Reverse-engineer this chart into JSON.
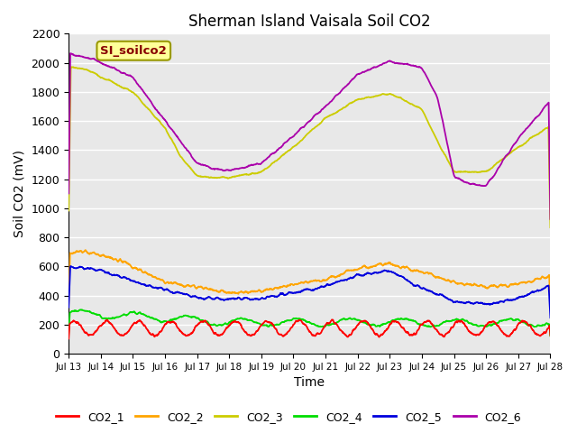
{
  "title": "Sherman Island Vaisala Soil CO2",
  "xlabel": "Time",
  "ylabel": "Soil CO2 (mV)",
  "annotation": "SI_soilco2",
  "ylim": [
    0,
    2200
  ],
  "yticks": [
    0,
    200,
    400,
    600,
    800,
    1000,
    1200,
    1400,
    1600,
    1800,
    2000,
    2200
  ],
  "xtick_labels": [
    "Jul 13",
    "Jul 14",
    "Jul 15",
    "Jul 16",
    "Jul 17",
    "Jul 18",
    "Jul 19",
    "Jul 20",
    "Jul 21",
    "Jul 22",
    "Jul 23",
    "Jul 24",
    "Jul 25",
    "Jul 26",
    "Jul 27",
    "Jul 28"
  ],
  "colors": {
    "CO2_1": "#ff0000",
    "CO2_2": "#ffa500",
    "CO2_3": "#cccc00",
    "CO2_4": "#00dd00",
    "CO2_5": "#0000dd",
    "CO2_6": "#aa00aa"
  },
  "background_color": "#e8e8e8",
  "title_fontsize": 12,
  "axis_label_fontsize": 10,
  "annotation_box_color": "#ffff99",
  "annotation_text_color": "#880000"
}
